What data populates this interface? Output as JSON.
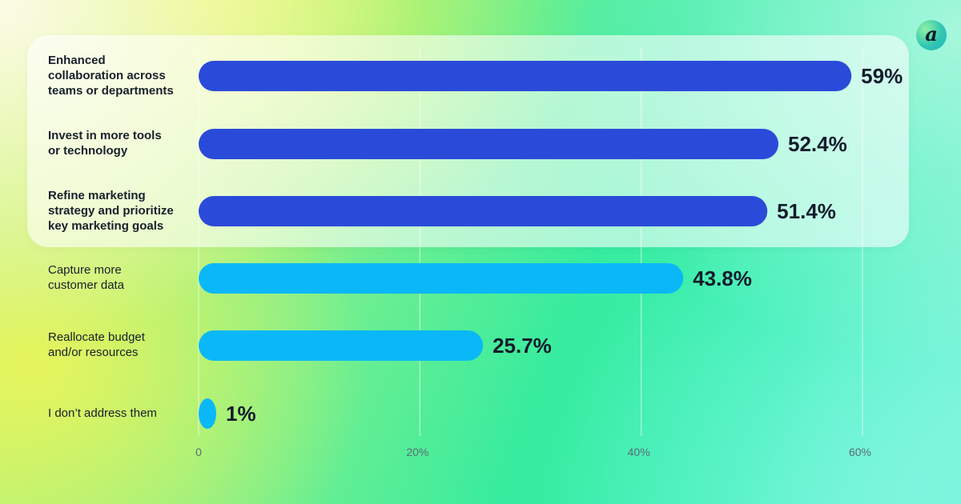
{
  "chart_data": {
    "type": "bar",
    "orientation": "horizontal",
    "categories": [
      "Enhanced\ncollaboration across\nteams or departments",
      "Invest in more tools\nor technology",
      "Refine marketing\nstrategy and prioritize\nkey marketing goals",
      "Capture more\ncustomer data",
      "Reallocate budget\nand/or resources",
      "I don’t address them"
    ],
    "values": [
      59,
      52.4,
      51.4,
      43.8,
      25.7,
      1
    ],
    "value_labels": [
      "59%",
      "52.4%",
      "51.4%",
      "43.8%",
      "25.7%",
      "1%"
    ],
    "highlighted": [
      true,
      true,
      true,
      false,
      false,
      false
    ],
    "xlim": [
      0,
      60
    ],
    "xticks": [
      0,
      20,
      40,
      60
    ],
    "xtick_labels": [
      "0",
      "20%",
      "40%",
      "60%"
    ],
    "grid": true,
    "colors": {
      "highlight": "#2a4bd9",
      "normal": "#0bb8f7"
    }
  },
  "logo": {
    "glyph": "a"
  }
}
